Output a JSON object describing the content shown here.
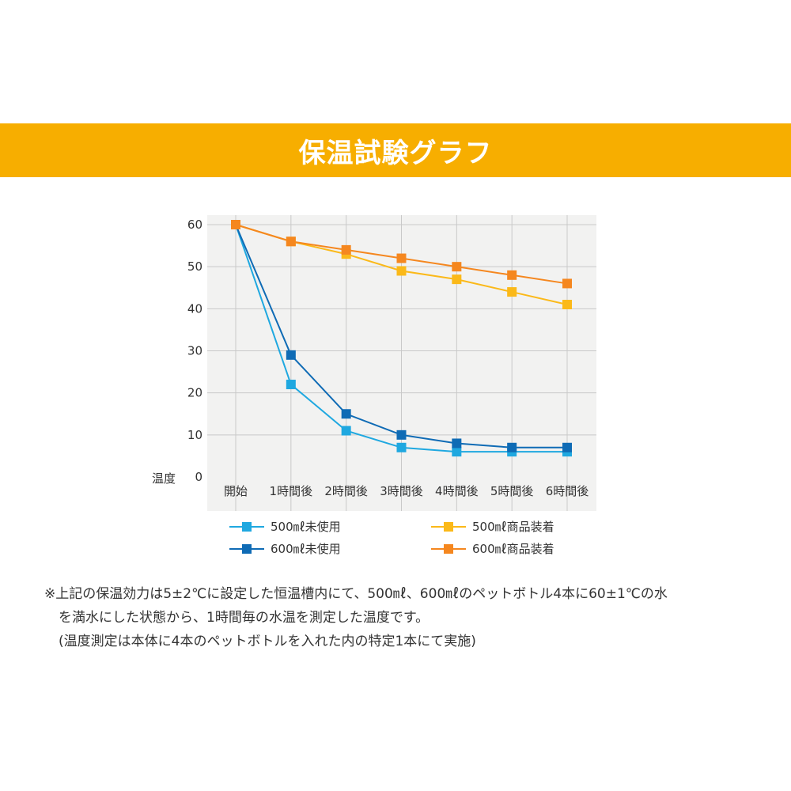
{
  "banner": {
    "title": "保温試験グラフ",
    "color": "#F7AE00"
  },
  "chart_data": {
    "type": "line",
    "title": "",
    "xlabel": "",
    "ylabel": "温度",
    "categories": [
      "開始",
      "1時間後",
      "2時間後",
      "3時間後",
      "4時間後",
      "5時間後",
      "6時間後"
    ],
    "ylim": [
      0,
      60
    ],
    "yticks": [
      0,
      10,
      20,
      30,
      40,
      50,
      60
    ],
    "grid": true,
    "legend_position": "bottom",
    "series": [
      {
        "name": "500㎖未使用",
        "color": "#1FA8E0",
        "marker": "square",
        "values": [
          60,
          22,
          11,
          7,
          6,
          6,
          6
        ]
      },
      {
        "name": "600㎖未使用",
        "color": "#0F6BB5",
        "marker": "square",
        "values": [
          60,
          29,
          15,
          10,
          8,
          7,
          7
        ]
      },
      {
        "name": "500㎖商品装着",
        "color": "#FBB919",
        "marker": "square",
        "values": [
          60,
          56,
          53,
          49,
          47,
          44,
          41
        ]
      },
      {
        "name": "600㎖商品装着",
        "color": "#F5871F",
        "marker": "square",
        "values": [
          60,
          56,
          54,
          52,
          50,
          48,
          46
        ]
      }
    ]
  },
  "note": {
    "lines": [
      "※上記の保温効力は5±2℃に設定した恒温槽内にて、500㎖、600㎖のペットボトル4本に60±1℃の水",
      "を満水にした状態から、1時間毎の水温を測定した温度です。",
      "(温度測定は本体に4本のペットボトルを入れた内の特定1本にて実施)"
    ]
  }
}
